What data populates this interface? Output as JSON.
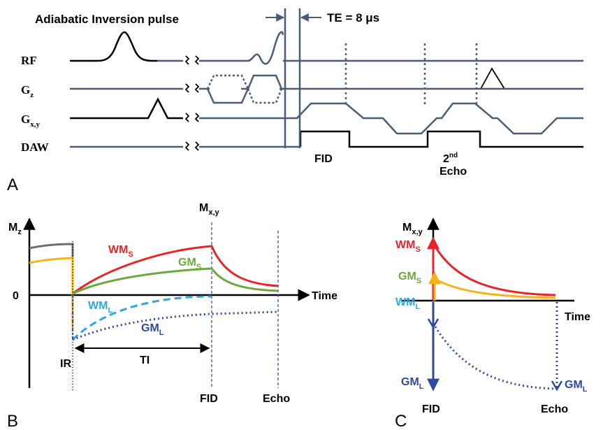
{
  "colors": {
    "line": "#4a5d73",
    "black": "#000000",
    "red": "#e8232a",
    "green": "#6aaa3a",
    "cyan": "#2ba8e0",
    "blue": "#2d4aa0",
    "yellow": "#f7b417",
    "gray": "#6d6e71",
    "dash": "#2f55a4"
  },
  "panel_a": {
    "letter": "A",
    "title": "Adiabatic Inversion pulse",
    "te_label": "TE = 8 μs",
    "rows": {
      "rf": "RF",
      "gz_main": "G",
      "gz_sub": "z",
      "gxy_main": "G",
      "gxy_sub": "x,y",
      "daw": "DAW"
    },
    "fid": "FID",
    "echo_num": "2",
    "echo_sup": "nd",
    "echo_word": "Echo"
  },
  "panel_b": {
    "letter": "B",
    "mz_main": "M",
    "mz_sub": "z",
    "mxy_main": "M",
    "mxy_sub": "x,y",
    "zero": "0",
    "time": "Time",
    "wms_main": "WM",
    "wms_sub": "S",
    "gms_main": "GM",
    "gms_sub": "S",
    "wml_main": "WM",
    "wml_sub": "L",
    "gml_main": "GM",
    "gml_sub": "L",
    "ir": "IR",
    "ti": "TI",
    "fid": "FID",
    "echo": "Echo"
  },
  "panel_c": {
    "letter": "C",
    "mxy_main": "M",
    "mxy_sub": "x,y",
    "wms_main": "WM",
    "wms_sub": "S",
    "gms_main": "GM",
    "gms_sub": "S",
    "wml_main": "WM",
    "wml_sub": "L",
    "gml_left_main": "GM",
    "gml_left_sub": "L",
    "gml_right_main": "GM",
    "gml_right_sub": "L",
    "time": "Time",
    "fid": "FID",
    "echo": "Echo"
  }
}
